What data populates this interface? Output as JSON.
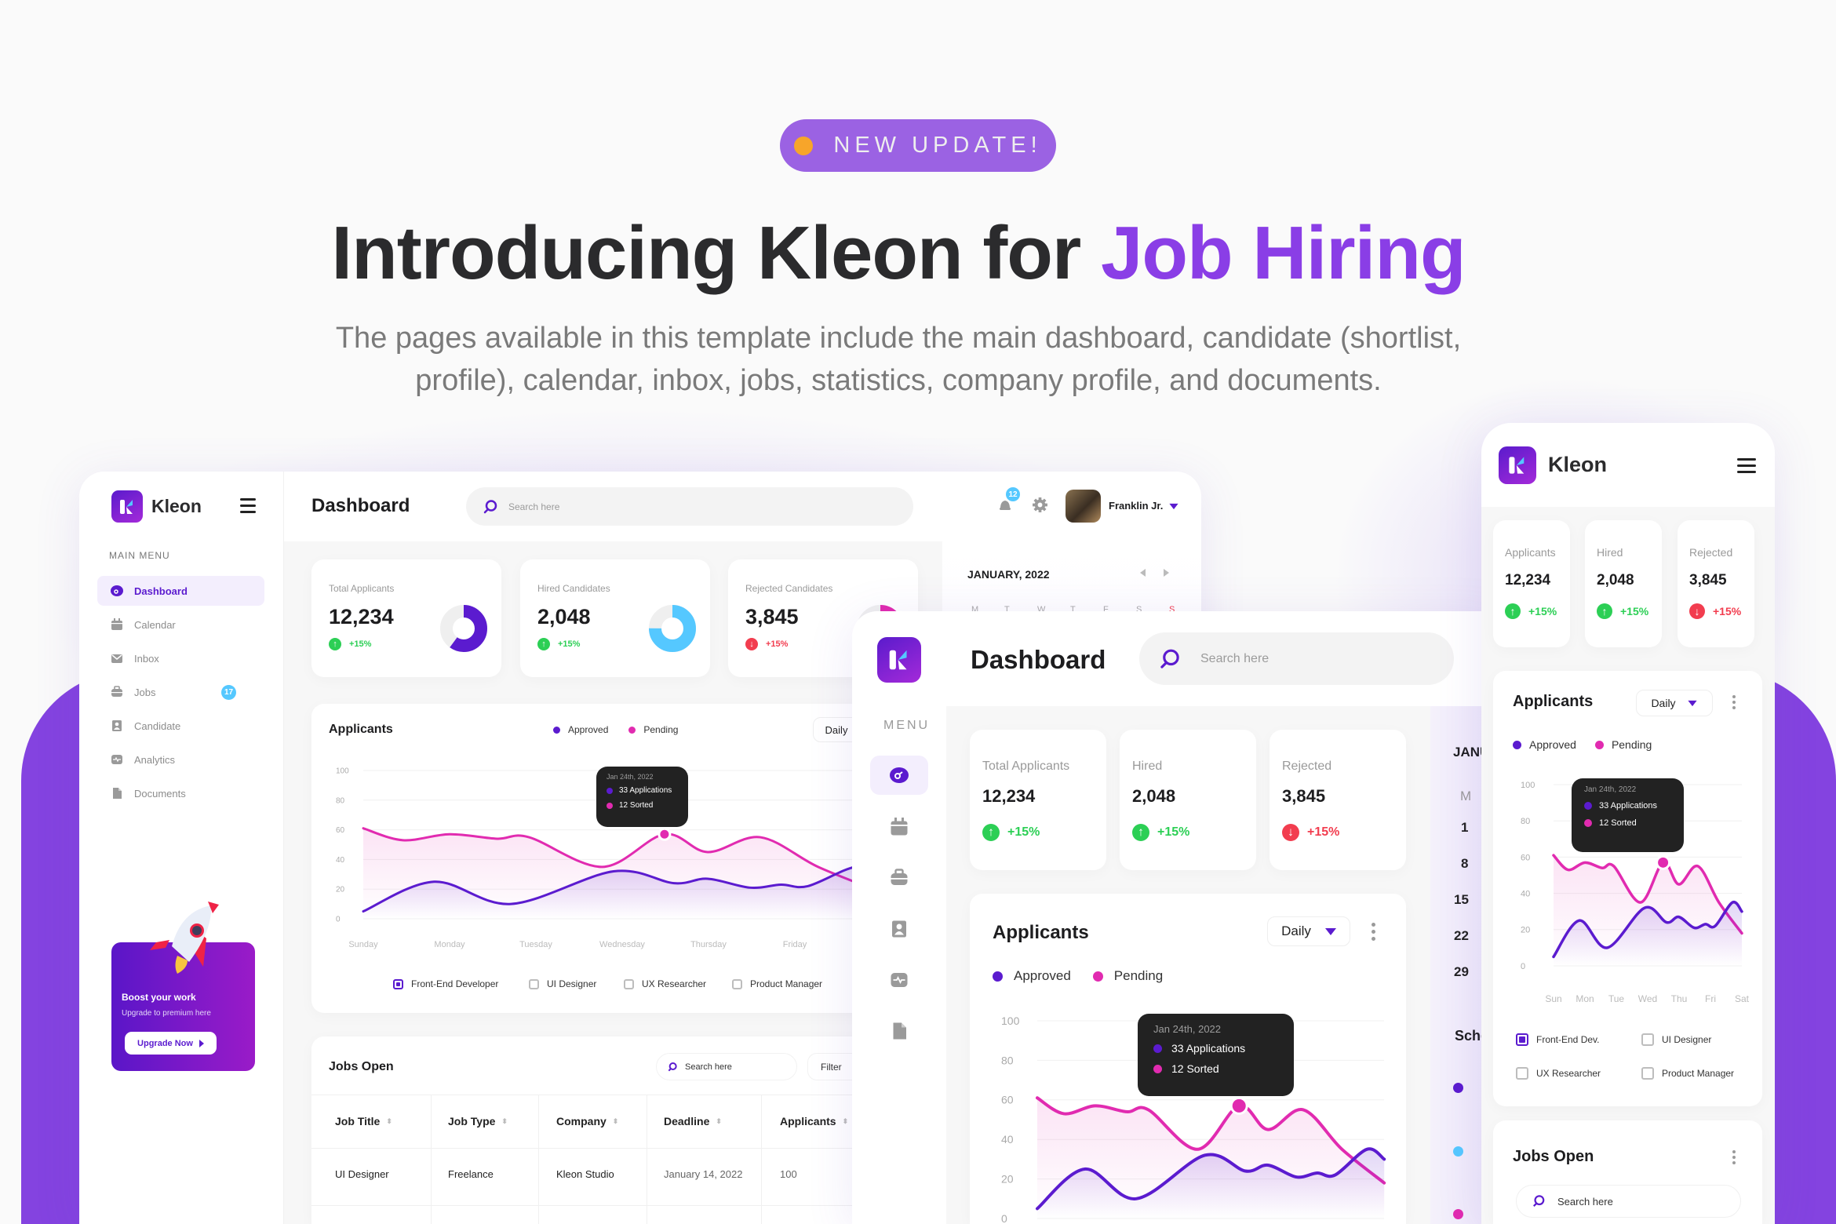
{
  "hero": {
    "badge": "NEW UPDATE!",
    "title_prefix": "Introducing Kleon for ",
    "title_highlight": "Job Hiring",
    "subtitle_line1": "The pages available in this template include the main dashboard, candidate (shortlist,",
    "subtitle_line2": "profile), calendar, inbox, jobs, statistics, company profile, and documents."
  },
  "colors": {
    "brand_purple": "#5b1bcf",
    "accent_pink": "#e12bb0",
    "accent_cyan": "#55c8ff",
    "success": "#2ccf55",
    "danger": "#f23d4f",
    "badge_bg": "#9b62e3",
    "badge_dot": "#f7a52a",
    "background_purple": "#8443e0"
  },
  "desktop": {
    "brand": "Kleon",
    "page_title": "Dashboard",
    "search_placeholder": "Search here",
    "notification_count": "12",
    "user_name": "Franklin Jr.",
    "menu_heading": "MAIN MENU",
    "menu": [
      {
        "label": "Dashboard",
        "icon": "dashboard-icon",
        "active": true
      },
      {
        "label": "Calendar",
        "icon": "calendar-icon"
      },
      {
        "label": "Inbox",
        "icon": "inbox-icon"
      },
      {
        "label": "Jobs",
        "icon": "briefcase-icon",
        "badge": "17"
      },
      {
        "label": "Candidate",
        "icon": "candidate-icon"
      },
      {
        "label": "Analytics",
        "icon": "analytics-icon"
      },
      {
        "label": "Documents",
        "icon": "document-icon"
      }
    ],
    "promo": {
      "title": "Boost your work",
      "subtitle": "Upgrade to premium here",
      "button": "Upgrade Now"
    },
    "stats": [
      {
        "label": "Total Applicants",
        "value": "12,234",
        "change": "+15%",
        "trend": "up",
        "ring_fraction": 0.6,
        "ring_color": "#5b1bcf"
      },
      {
        "label": "Hired Candidates",
        "value": "2,048",
        "change": "+15%",
        "trend": "up",
        "ring_fraction": 0.75,
        "ring_color": "#55c8ff"
      },
      {
        "label": "Rejected Candidates",
        "value": "3,845",
        "change": "+15%",
        "trend": "down",
        "ring_fraction": 0.3,
        "ring_color": "#e12bb0"
      }
    ],
    "applicants": {
      "title": "Applicants",
      "legend": [
        "Approved",
        "Pending"
      ],
      "period": "Daily",
      "tooltip": {
        "date": "Jan 24th, 2022",
        "line1": "33 Applications",
        "line2": "12 Sorted"
      },
      "filters": [
        {
          "label": "Front-End Developer",
          "checked": true
        },
        {
          "label": "UI Designer",
          "checked": false
        },
        {
          "label": "UX Researcher",
          "checked": false
        },
        {
          "label": "Product Manager",
          "checked": false
        }
      ]
    },
    "jobs": {
      "title": "Jobs Open",
      "search_placeholder": "Search here",
      "filter": "Filter",
      "columns": [
        "Job Title",
        "Job Type",
        "Company",
        "Deadline",
        "Applicants"
      ],
      "rows": [
        [
          "UI Designer",
          "Freelance",
          "Kleon Studio",
          "January 14, 2022",
          "100"
        ]
      ]
    },
    "calendar": {
      "month": "JANUARY, 2022",
      "weekdays": [
        "M",
        "T",
        "W",
        "T",
        "F",
        "S",
        "S"
      ]
    }
  },
  "tablet": {
    "page_title": "Dashboard",
    "search_placeholder": "Search here",
    "menu_heading": "MENU",
    "stats": [
      {
        "label": "Total Applicants",
        "value": "12,234",
        "change": "+15%",
        "trend": "up"
      },
      {
        "label": "Hired",
        "value": "2,048",
        "change": "+15%",
        "trend": "up"
      },
      {
        "label": "Rejected",
        "value": "3,845",
        "change": "+15%",
        "trend": "down"
      }
    ],
    "applicants": {
      "title": "Applicants",
      "legend": [
        "Approved",
        "Pending"
      ],
      "period": "Daily",
      "tooltip": {
        "date": "Jan 24th, 2022",
        "line1": "33 Applications",
        "line2": "12 Sorted"
      }
    },
    "calendar_partial": {
      "month": "JANU",
      "weekday": "M",
      "days": [
        "1",
        "8",
        "15",
        "22",
        "29"
      ],
      "schedule": "Sche"
    }
  },
  "mobile": {
    "brand": "Kleon",
    "stats": [
      {
        "label": "Applicants",
        "value": "12,234",
        "change": "+15%",
        "trend": "up"
      },
      {
        "label": "Hired",
        "value": "2,048",
        "change": "+15%",
        "trend": "up"
      },
      {
        "label": "Rejected",
        "value": "3,845",
        "change": "+15%",
        "trend": "down"
      }
    ],
    "applicants": {
      "title": "Applicants",
      "legend": [
        "Approved",
        "Pending"
      ],
      "period": "Daily",
      "tooltip": {
        "date": "Jan 24th, 2022",
        "line1": "33 Applications",
        "line2": "12 Sorted"
      },
      "filters": [
        {
          "label": "Front-End Dev.",
          "checked": true
        },
        {
          "label": "UI Designer",
          "checked": false
        },
        {
          "label": "UX Researcher",
          "checked": false
        },
        {
          "label": "Product Manager",
          "checked": false
        }
      ]
    },
    "jobs": {
      "title": "Jobs Open",
      "search_placeholder": "Search here"
    }
  },
  "chart_data": [
    {
      "type": "area",
      "categories": [
        "Sunday",
        "Monday",
        "Tuesday",
        "Wednesday",
        "Thursday",
        "Friday"
      ],
      "yticks": [
        "0",
        "20",
        "40",
        "60",
        "80",
        "100"
      ],
      "ylim": [
        0,
        100
      ],
      "grid": true,
      "legend": "top",
      "series": [
        {
          "name": "Approved",
          "color": "#5b1bcf",
          "x": [
            0,
            0.82,
            1.71,
            2.9,
            3.6,
            3.99,
            4.48,
            4.84,
            5.15,
            5.7,
            6
          ],
          "y": [
            5,
            25,
            10,
            32,
            24,
            27,
            21,
            23,
            22,
            35,
            30
          ]
        },
        {
          "name": "Pending",
          "color": "#e12bb0",
          "x": [
            0,
            0.46,
            1.0,
            1.55,
            1.92,
            2.77,
            3.49,
            3.99,
            4.6,
            5.27,
            6
          ],
          "y": [
            61,
            53,
            57,
            54,
            55,
            35,
            57,
            45,
            55,
            35,
            18
          ]
        }
      ],
      "highlight": {
        "x": 3.49,
        "series": "Pending"
      }
    },
    {
      "type": "area",
      "categories": [],
      "yticks": [
        "0",
        "20",
        "40",
        "60",
        "80",
        "100"
      ],
      "ylim": [
        0,
        100
      ],
      "grid": true,
      "legend": "top-left",
      "series": [
        {
          "name": "Approved",
          "color": "#5b1bcf",
          "x": [
            0,
            0.82,
            1.71,
            2.9,
            3.6,
            3.99,
            4.48,
            4.84,
            5.15,
            5.7,
            6
          ],
          "y": [
            5,
            25,
            10,
            32,
            24,
            27,
            21,
            23,
            22,
            35,
            30
          ]
        },
        {
          "name": "Pending",
          "color": "#e12bb0",
          "x": [
            0,
            0.46,
            1.0,
            1.55,
            1.92,
            2.77,
            3.49,
            3.99,
            4.6,
            5.27,
            6
          ],
          "y": [
            61,
            53,
            57,
            54,
            55,
            35,
            57,
            45,
            55,
            35,
            18
          ]
        }
      ],
      "highlight": {
        "x": 3.49,
        "series": "Pending"
      }
    },
    {
      "type": "area",
      "categories": [
        "Sun",
        "Mon",
        "Tue",
        "Wed",
        "Thu",
        "Fri",
        "Sat"
      ],
      "yticks": [
        "0",
        "20",
        "40",
        "60",
        "80",
        "100"
      ],
      "ylim": [
        0,
        100
      ],
      "grid": true,
      "legend": "top-left",
      "series": [
        {
          "name": "Approved",
          "color": "#5b1bcf",
          "x": [
            0,
            0.82,
            1.71,
            2.9,
            3.6,
            3.99,
            4.48,
            4.84,
            5.15,
            5.7,
            6
          ],
          "y": [
            5,
            25,
            10,
            32,
            24,
            27,
            21,
            23,
            22,
            35,
            30
          ]
        },
        {
          "name": "Pending",
          "color": "#e12bb0",
          "x": [
            0,
            0.46,
            1.0,
            1.55,
            1.92,
            2.77,
            3.49,
            3.99,
            4.6,
            5.27,
            6
          ],
          "y": [
            61,
            53,
            57,
            54,
            55,
            35,
            57,
            45,
            55,
            35,
            18
          ]
        }
      ],
      "highlight": {
        "x": 3.49,
        "series": "Pending"
      }
    }
  ]
}
